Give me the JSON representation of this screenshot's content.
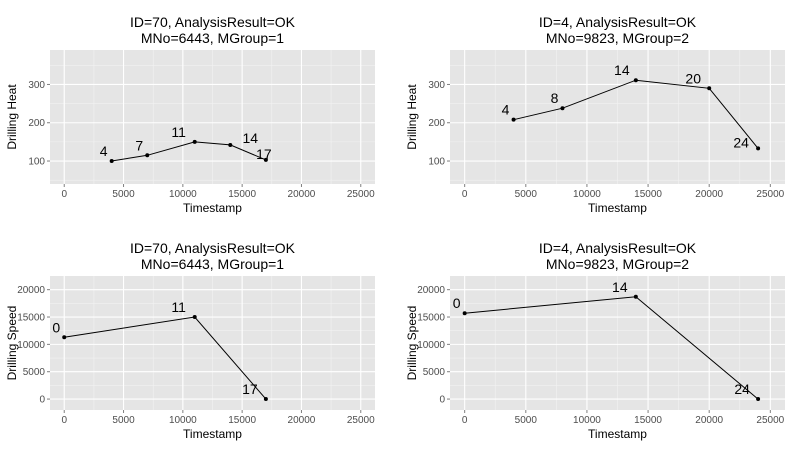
{
  "chart_data": [
    {
      "type": "line",
      "title": [
        "ID=70, AnalysisResult=OK",
        "MNo=6443, MGroup=1"
      ],
      "xlabel": "Timestamp",
      "ylabel": "Drilling Heat",
      "xlim": [
        -1200,
        26200
      ],
      "ylim": [
        40,
        390
      ],
      "xticks": [
        0,
        5000,
        10000,
        15000,
        20000,
        25000
      ],
      "yticks": [
        100,
        200,
        300
      ],
      "grid": true,
      "background": "#e5e5e5",
      "points": [
        {
          "x": 4000,
          "y": 100,
          "label": "4"
        },
        {
          "x": 7000,
          "y": 115,
          "label": "7"
        },
        {
          "x": 11000,
          "y": 150,
          "label": "11"
        },
        {
          "x": 14000,
          "y": 142,
          "label": "14"
        },
        {
          "x": 17000,
          "y": 103,
          "label": "17"
        }
      ]
    },
    {
      "type": "line",
      "title": [
        "ID=4, AnalysisResult=OK",
        "MNo=9823, MGroup=2"
      ],
      "xlabel": "Timestamp",
      "ylabel": "Drilling Heat",
      "xlim": [
        -1200,
        26200
      ],
      "ylim": [
        40,
        390
      ],
      "xticks": [
        0,
        5000,
        10000,
        15000,
        20000,
        25000
      ],
      "yticks": [
        100,
        200,
        300
      ],
      "grid": true,
      "background": "#e5e5e5",
      "points": [
        {
          "x": 4000,
          "y": 208,
          "label": "4"
        },
        {
          "x": 8000,
          "y": 238,
          "label": "8"
        },
        {
          "x": 14000,
          "y": 311,
          "label": "14"
        },
        {
          "x": 20000,
          "y": 290,
          "label": "20"
        },
        {
          "x": 24000,
          "y": 133,
          "label": "24"
        }
      ]
    },
    {
      "type": "line",
      "title": [
        "ID=70, AnalysisResult=OK",
        "MNo=6443, MGroup=1"
      ],
      "xlabel": "Timestamp",
      "ylabel": "Drilling Speed",
      "xlim": [
        -1200,
        26200
      ],
      "ylim": [
        -2000,
        22500
      ],
      "xticks": [
        0,
        5000,
        10000,
        15000,
        20000,
        25000
      ],
      "yticks": [
        0,
        5000,
        10000,
        15000,
        20000
      ],
      "grid": true,
      "background": "#e5e5e5",
      "points": [
        {
          "x": 0,
          "y": 11300,
          "label": "0"
        },
        {
          "x": 11000,
          "y": 15000,
          "label": "11"
        },
        {
          "x": 17000,
          "y": 0,
          "label": "17"
        }
      ]
    },
    {
      "type": "line",
      "title": [
        "ID=4, AnalysisResult=OK",
        "MNo=9823, MGroup=2"
      ],
      "xlabel": "Timestamp",
      "ylabel": "Drilling Speed",
      "xlim": [
        -1200,
        26200
      ],
      "ylim": [
        -2000,
        22500
      ],
      "xticks": [
        0,
        5000,
        10000,
        15000,
        20000,
        25000
      ],
      "yticks": [
        0,
        5000,
        10000,
        15000,
        20000
      ],
      "grid": true,
      "background": "#e5e5e5",
      "points": [
        {
          "x": 0,
          "y": 15700,
          "label": "0"
        },
        {
          "x": 14000,
          "y": 18700,
          "label": "14"
        },
        {
          "x": 24000,
          "y": 0,
          "label": "24"
        }
      ]
    }
  ]
}
